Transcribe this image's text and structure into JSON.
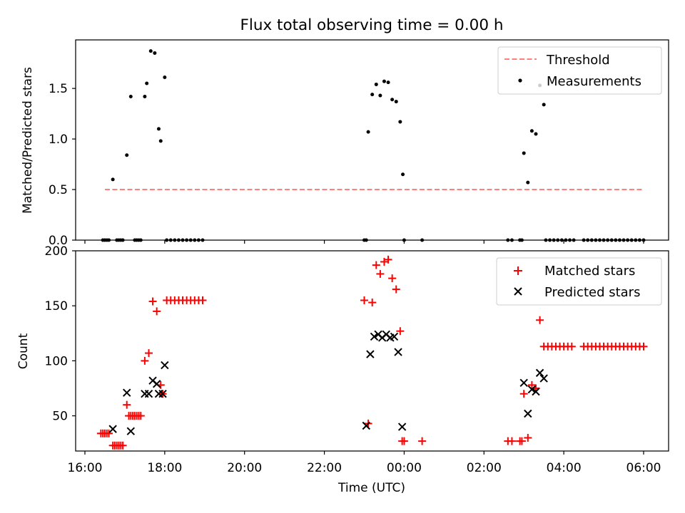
{
  "chart_data": {
    "title": "Flux total observing time = 0.00 h",
    "xlabel": "Time (UTC)",
    "x_tick_labels": [
      "16:00",
      "18:00",
      "20:00",
      "22:00",
      "00:00",
      "02:00",
      "04:00",
      "06:00"
    ],
    "panels": [
      {
        "type": "scatter",
        "ylabel": "Matched/Predicted stars",
        "ylim": [
          0,
          1.98
        ],
        "y_ticks": [
          0,
          0.5,
          1.0,
          1.5
        ],
        "y_tick_labels": [
          "0.0",
          "0.5",
          "1.0",
          "1.5"
        ],
        "legend_position": "top-right",
        "threshold": {
          "name": "Threshold",
          "value": 0.5,
          "x_range": [
            "16:30",
            "06:00"
          ],
          "color": "#ff7f7f"
        },
        "series": [
          {
            "name": "Measurements",
            "color": "#000000",
            "points": [
              [
                "16:27",
                0
              ],
              [
                "16:30",
                0
              ],
              [
                "16:33",
                0
              ],
              [
                "16:36",
                0
              ],
              [
                "16:42",
                0.6
              ],
              [
                "16:48",
                0
              ],
              [
                "16:51",
                0
              ],
              [
                "16:54",
                0
              ],
              [
                "16:57",
                0
              ],
              [
                "17:03",
                0.84
              ],
              [
                "17:09",
                1.42
              ],
              [
                "17:15",
                0
              ],
              [
                "17:18",
                0
              ],
              [
                "17:21",
                0
              ],
              [
                "17:24",
                0
              ],
              [
                "17:30",
                1.42
              ],
              [
                "17:33",
                1.55
              ],
              [
                "17:39",
                1.87
              ],
              [
                "17:45",
                1.85
              ],
              [
                "17:51",
                1.1
              ],
              [
                "17:54",
                0.98
              ],
              [
                "18:00",
                1.61
              ],
              [
                "18:03",
                0
              ],
              [
                "18:09",
                0
              ],
              [
                "18:15",
                0
              ],
              [
                "18:21",
                0
              ],
              [
                "18:27",
                0
              ],
              [
                "18:33",
                0
              ],
              [
                "18:39",
                0
              ],
              [
                "18:45",
                0
              ],
              [
                "18:51",
                0
              ],
              [
                "18:57",
                0
              ],
              [
                "23:00",
                0
              ],
              [
                "23:03",
                0
              ],
              [
                "23:06",
                1.07
              ],
              [
                "23:12",
                1.44
              ],
              [
                "23:18",
                1.54
              ],
              [
                "23:24",
                1.43
              ],
              [
                "23:30",
                1.57
              ],
              [
                "23:36",
                1.56
              ],
              [
                "23:42",
                1.39
              ],
              [
                "23:48",
                1.37
              ],
              [
                "23:54",
                1.17
              ],
              [
                "23:58",
                0.65
              ],
              [
                "00:00",
                0
              ],
              [
                "00:27",
                0
              ],
              [
                "02:36",
                0
              ],
              [
                "02:42",
                0
              ],
              [
                "02:54",
                0
              ],
              [
                "02:57",
                0
              ],
              [
                "03:00",
                0.86
              ],
              [
                "03:06",
                0.57
              ],
              [
                "03:12",
                1.08
              ],
              [
                "03:18",
                1.05
              ],
              [
                "03:24",
                1.53
              ],
              [
                "03:30",
                1.34
              ],
              [
                "03:33",
                0
              ],
              [
                "03:39",
                0
              ],
              [
                "03:45",
                0
              ],
              [
                "03:51",
                0
              ],
              [
                "03:57",
                0
              ],
              [
                "04:03",
                0
              ],
              [
                "04:09",
                0
              ],
              [
                "04:15",
                0
              ],
              [
                "04:30",
                0
              ],
              [
                "04:36",
                0
              ],
              [
                "04:42",
                0
              ],
              [
                "04:48",
                0
              ],
              [
                "04:54",
                0
              ],
              [
                "05:00",
                0
              ],
              [
                "05:06",
                0
              ],
              [
                "05:12",
                0
              ],
              [
                "05:18",
                0
              ],
              [
                "05:24",
                0
              ],
              [
                "05:30",
                0
              ],
              [
                "05:36",
                0
              ],
              [
                "05:42",
                0
              ],
              [
                "05:48",
                0
              ],
              [
                "05:54",
                0
              ],
              [
                "06:00",
                0
              ]
            ]
          }
        ]
      },
      {
        "type": "scatter",
        "ylabel": "Count",
        "ylim": [
          18,
          200
        ],
        "y_ticks": [
          50,
          100,
          150,
          200
        ],
        "y_tick_labels": [
          "50",
          "100",
          "150",
          "200"
        ],
        "legend_position": "top-right",
        "series": [
          {
            "name": "Matched stars",
            "marker": "plus",
            "color": "#ff0000",
            "points": [
              [
                "16:24",
                34
              ],
              [
                "16:27",
                34
              ],
              [
                "16:30",
                34
              ],
              [
                "16:33",
                34
              ],
              [
                "16:36",
                34
              ],
              [
                "16:42",
                23
              ],
              [
                "16:45",
                23
              ],
              [
                "16:48",
                23
              ],
              [
                "16:51",
                23
              ],
              [
                "16:54",
                23
              ],
              [
                "16:57",
                23
              ],
              [
                "17:03",
                60
              ],
              [
                "17:06",
                50
              ],
              [
                "17:09",
                50
              ],
              [
                "17:12",
                50
              ],
              [
                "17:15",
                50
              ],
              [
                "17:18",
                50
              ],
              [
                "17:21",
                50
              ],
              [
                "17:24",
                50
              ],
              [
                "17:30",
                100
              ],
              [
                "17:36",
                107
              ],
              [
                "17:42",
                154
              ],
              [
                "17:48",
                145
              ],
              [
                "17:54",
                78
              ],
              [
                "17:57",
                70
              ],
              [
                "18:03",
                155
              ],
              [
                "18:09",
                155
              ],
              [
                "18:15",
                155
              ],
              [
                "18:21",
                155
              ],
              [
                "18:27",
                155
              ],
              [
                "18:33",
                155
              ],
              [
                "18:39",
                155
              ],
              [
                "18:45",
                155
              ],
              [
                "18:51",
                155
              ],
              [
                "18:57",
                155
              ],
              [
                "23:00",
                155
              ],
              [
                "23:06",
                43
              ],
              [
                "23:12",
                153
              ],
              [
                "23:18",
                187
              ],
              [
                "23:24",
                179
              ],
              [
                "23:30",
                190
              ],
              [
                "23:36",
                192
              ],
              [
                "23:42",
                175
              ],
              [
                "23:48",
                165
              ],
              [
                "23:54",
                127
              ],
              [
                "23:57",
                27
              ],
              [
                "24:00",
                27
              ],
              [
                "24:27",
                27
              ],
              [
                "26:36",
                27
              ],
              [
                "26:42",
                27
              ],
              [
                "26:54",
                27
              ],
              [
                "26:57",
                27
              ],
              [
                "27:00",
                70
              ],
              [
                "27:06",
                30
              ],
              [
                "27:12",
                78
              ],
              [
                "27:18",
                75
              ],
              [
                "27:24",
                137
              ],
              [
                "27:30",
                113
              ],
              [
                "27:36",
                113
              ],
              [
                "27:42",
                113
              ],
              [
                "27:48",
                113
              ],
              [
                "27:54",
                113
              ],
              [
                "28:00",
                113
              ],
              [
                "28:06",
                113
              ],
              [
                "28:12",
                113
              ],
              [
                "28:30",
                113
              ],
              [
                "28:36",
                113
              ],
              [
                "28:42",
                113
              ],
              [
                "28:48",
                113
              ],
              [
                "28:54",
                113
              ],
              [
                "29:00",
                113
              ],
              [
                "29:06",
                113
              ],
              [
                "29:12",
                113
              ],
              [
                "29:18",
                113
              ],
              [
                "29:24",
                113
              ],
              [
                "29:30",
                113
              ],
              [
                "29:36",
                113
              ],
              [
                "29:42",
                113
              ],
              [
                "29:48",
                113
              ],
              [
                "29:54",
                113
              ],
              [
                "30:00",
                113
              ]
            ]
          },
          {
            "name": "Predicted stars",
            "marker": "x",
            "color": "#000000",
            "points": [
              [
                "16:42",
                38
              ],
              [
                "17:03",
                71
              ],
              [
                "17:09",
                36
              ],
              [
                "17:30",
                70
              ],
              [
                "17:36",
                70
              ],
              [
                "17:42",
                82
              ],
              [
                "17:48",
                79
              ],
              [
                "17:51",
                70
              ],
              [
                "17:57",
                70
              ],
              [
                "18:00",
                96
              ],
              [
                "23:03",
                41
              ],
              [
                "23:09",
                106
              ],
              [
                "23:15",
                122
              ],
              [
                "23:21",
                124
              ],
              [
                "23:27",
                121
              ],
              [
                "23:33",
                124
              ],
              [
                "23:39",
                121
              ],
              [
                "23:45",
                122
              ],
              [
                "23:51",
                108
              ],
              [
                "23:57",
                40
              ],
              [
                "27:00",
                80
              ],
              [
                "27:06",
                52
              ],
              [
                "27:12",
                74
              ],
              [
                "27:18",
                72
              ],
              [
                "27:24",
                89
              ],
              [
                "27:30",
                84
              ]
            ]
          }
        ]
      }
    ]
  }
}
